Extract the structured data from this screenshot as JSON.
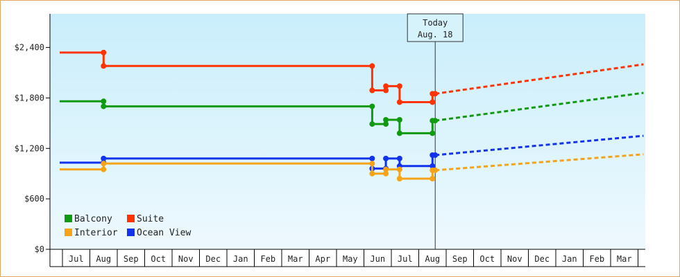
{
  "chart_data": {
    "type": "line",
    "title": "",
    "xlabel": "",
    "ylabel": "",
    "ylim": [
      0,
      2800
    ],
    "y_ticks": [
      {
        "value": 0,
        "label": "$0"
      },
      {
        "value": 600,
        "label": "$600"
      },
      {
        "value": 1200,
        "label": "$1,200"
      },
      {
        "value": 1800,
        "label": "$1,800"
      },
      {
        "value": 2400,
        "label": "$2,400"
      }
    ],
    "x_months": [
      "Jul",
      "Aug",
      "Sep",
      "Oct",
      "Nov",
      "Dec",
      "Jan",
      "Feb",
      "Mar",
      "Apr",
      "May",
      "Jun",
      "Jul",
      "Aug",
      "Sep",
      "Oct",
      "Nov",
      "Dec",
      "Jan",
      "Feb",
      "Mar"
    ],
    "today": {
      "line1": "Today",
      "line2": "Aug. 18",
      "x": 13.6
    },
    "grid": false,
    "legend_position": "bottom-left",
    "colors": {
      "plot_top": "#c9eefb",
      "plot_bottom": "#eef9fe",
      "frame_border": "#e3a562",
      "axis": "#000000"
    },
    "series": [
      {
        "name": "Suite",
        "color": "#ff3300",
        "points": [
          [
            -0.1,
            2340
          ],
          [
            1.5,
            2340
          ],
          [
            1.5,
            2180
          ],
          [
            11.3,
            2180
          ],
          [
            11.3,
            1890
          ],
          [
            11.8,
            1890
          ],
          [
            11.8,
            1940
          ],
          [
            12.3,
            1940
          ],
          [
            12.3,
            1750
          ],
          [
            13.5,
            1750
          ],
          [
            13.5,
            1850
          ],
          [
            13.6,
            1850
          ]
        ],
        "forecast": [
          [
            13.6,
            1850
          ],
          [
            21.2,
            2200
          ]
        ]
      },
      {
        "name": "Balcony",
        "color": "#119911",
        "points": [
          [
            -0.1,
            1760
          ],
          [
            1.5,
            1760
          ],
          [
            1.5,
            1700
          ],
          [
            11.3,
            1700
          ],
          [
            11.3,
            1490
          ],
          [
            11.8,
            1490
          ],
          [
            11.8,
            1540
          ],
          [
            12.3,
            1540
          ],
          [
            12.3,
            1380
          ],
          [
            13.5,
            1380
          ],
          [
            13.5,
            1530
          ],
          [
            13.6,
            1530
          ]
        ],
        "forecast": [
          [
            13.6,
            1530
          ],
          [
            21.2,
            1860
          ]
        ]
      },
      {
        "name": "Ocean View",
        "color": "#1133ee",
        "points": [
          [
            -0.1,
            1030
          ],
          [
            1.5,
            1030
          ],
          [
            1.5,
            1080
          ],
          [
            11.3,
            1080
          ],
          [
            11.3,
            960
          ],
          [
            11.8,
            960
          ],
          [
            11.8,
            1080
          ],
          [
            12.3,
            1080
          ],
          [
            12.3,
            990
          ],
          [
            13.5,
            990
          ],
          [
            13.5,
            1120
          ],
          [
            13.6,
            1120
          ]
        ],
        "forecast": [
          [
            13.6,
            1120
          ],
          [
            21.2,
            1350
          ]
        ]
      },
      {
        "name": "Interior",
        "color": "#f5a317",
        "points": [
          [
            -0.1,
            950
          ],
          [
            1.5,
            950
          ],
          [
            1.5,
            1020
          ],
          [
            11.3,
            1020
          ],
          [
            11.3,
            900
          ],
          [
            11.8,
            900
          ],
          [
            11.8,
            950
          ],
          [
            12.3,
            950
          ],
          [
            12.3,
            840
          ],
          [
            13.5,
            840
          ],
          [
            13.5,
            940
          ],
          [
            13.6,
            940
          ]
        ],
        "forecast": [
          [
            13.6,
            940
          ],
          [
            21.2,
            1130
          ]
        ]
      }
    ],
    "legend": [
      {
        "name": "Balcony",
        "color": "#119911"
      },
      {
        "name": "Suite",
        "color": "#ff3300"
      },
      {
        "name": "Interior",
        "color": "#f5a317"
      },
      {
        "name": "Ocean View",
        "color": "#1133ee"
      }
    ]
  }
}
